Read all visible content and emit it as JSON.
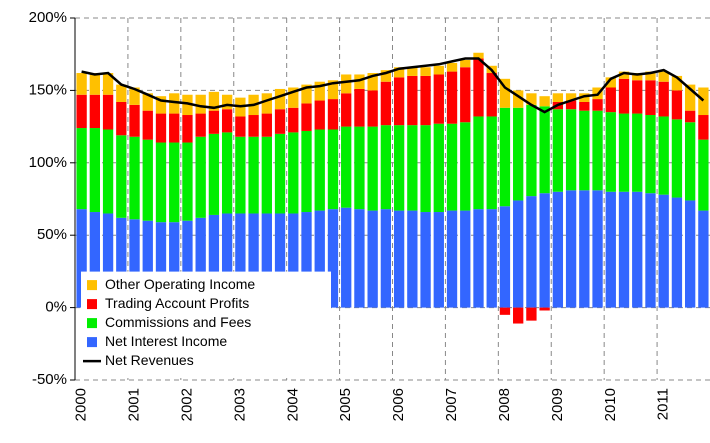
{
  "chart_data": {
    "type": "stacked_bar_line",
    "categories": [
      "2000",
      null,
      null,
      null,
      "2001",
      null,
      null,
      null,
      "2002",
      null,
      null,
      null,
      "2003",
      null,
      null,
      null,
      "2004",
      null,
      null,
      null,
      "2005",
      null,
      null,
      null,
      "2006",
      null,
      null,
      null,
      "2007",
      null,
      null,
      null,
      "2008",
      null,
      null,
      null,
      "2009",
      null,
      null,
      null,
      "2010",
      null,
      null,
      null,
      "2011",
      null,
      null,
      null
    ],
    "series": [
      {
        "name": "Net Interest Income",
        "color": "#3366ff",
        "kind": "bar",
        "values": [
          68,
          66,
          65,
          62,
          61,
          60,
          59,
          59,
          60,
          62,
          64,
          65,
          65,
          65,
          65,
          65,
          65,
          66,
          67,
          68,
          69,
          68,
          67,
          68,
          67,
          67,
          66,
          66,
          67,
          67,
          68,
          68,
          70,
          74,
          77,
          79,
          80,
          81,
          81,
          81,
          80,
          80,
          80,
          79,
          78,
          76,
          74,
          67
        ]
      },
      {
        "name": "Commissions and Fees",
        "color": "#00ee00",
        "kind": "bar",
        "values": [
          56,
          58,
          58,
          57,
          57,
          56,
          55,
          55,
          54,
          56,
          56,
          56,
          53,
          53,
          53,
          55,
          56,
          56,
          56,
          55,
          56,
          57,
          58,
          58,
          59,
          59,
          60,
          61,
          60,
          61,
          64,
          64,
          68,
          64,
          63,
          60,
          57,
          56,
          55,
          55,
          55,
          54,
          54,
          54,
          54,
          54,
          54,
          49
        ]
      },
      {
        "name": "Trading Account Profits",
        "color": "#ff0000",
        "kind": "bar",
        "values": [
          23,
          23,
          24,
          23,
          22,
          20,
          20,
          20,
          19,
          16,
          16,
          16,
          14,
          15,
          16,
          17,
          17,
          19,
          20,
          21,
          23,
          26,
          25,
          30,
          33,
          34,
          34,
          34,
          36,
          38,
          40,
          30,
          -5,
          -11,
          -9,
          -2,
          5,
          6,
          6,
          8,
          17,
          24,
          23,
          24,
          24,
          20,
          8,
          17
        ]
      },
      {
        "name": "Other Operating Income",
        "color": "#ffc000",
        "kind": "bar",
        "values": [
          15,
          15,
          15,
          12,
          12,
          12,
          12,
          14,
          14,
          13,
          13,
          10,
          13,
          14,
          14,
          14,
          14,
          13,
          13,
          13,
          13,
          10,
          12,
          8,
          7,
          6,
          6,
          6,
          6,
          5,
          4,
          5,
          20,
          12,
          8,
          7,
          6,
          5,
          6,
          8,
          7,
          5,
          5,
          6,
          7,
          10,
          18,
          19
        ]
      },
      {
        "name": "Net Revenues",
        "color": "#000000",
        "kind": "line",
        "values": [
          163,
          161,
          162,
          154,
          151,
          147,
          143,
          142,
          141,
          139,
          138,
          140,
          139,
          140,
          143,
          146,
          149,
          152,
          153,
          155,
          156,
          157,
          160,
          162,
          165,
          166,
          167,
          168,
          170,
          172,
          172,
          164,
          152,
          146,
          140,
          135,
          140,
          143,
          146,
          147,
          158,
          162,
          161,
          162,
          164,
          159,
          151,
          143
        ]
      }
    ],
    "ylim": [
      -50,
      200
    ],
    "yticks": [
      {
        "value": -50,
        "label": "-50%"
      },
      {
        "value": 0,
        "label": "0%"
      },
      {
        "value": 50,
        "label": "50%"
      },
      {
        "value": 100,
        "label": "100%"
      },
      {
        "value": 150,
        "label": "150%"
      },
      {
        "value": 200,
        "label": "200%"
      }
    ],
    "grid": true,
    "legend_position": "lower left"
  }
}
